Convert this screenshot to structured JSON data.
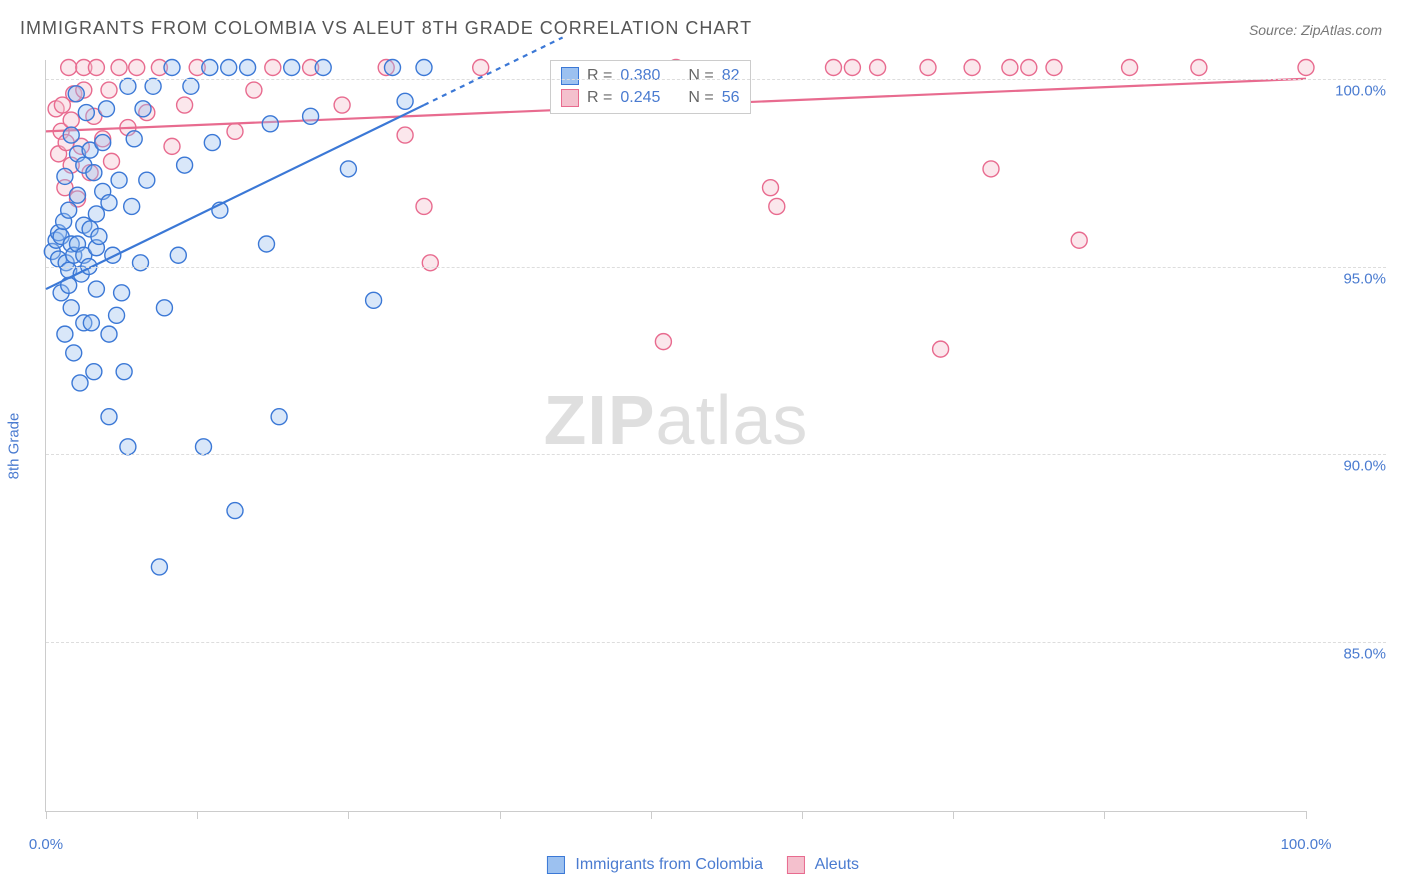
{
  "title": "IMMIGRANTS FROM COLOMBIA VS ALEUT 8TH GRADE CORRELATION CHART",
  "source": "Source: ZipAtlas.com",
  "ylabel": "8th Grade",
  "watermark_a": "ZIP",
  "watermark_b": "atlas",
  "chart": {
    "type": "scatter",
    "background_color": "#ffffff",
    "grid_color": "#dddddd",
    "axis_color": "#cccccc",
    "tick_label_color": "#4a7bd0",
    "xlim": [
      0,
      100
    ],
    "ylim": [
      80.5,
      100.5
    ],
    "yticks": [
      85,
      90,
      95,
      100
    ],
    "ytick_labels": [
      "85.0%",
      "90.0%",
      "95.0%",
      "100.0%"
    ],
    "xtick_positions": [
      0,
      12,
      24,
      36,
      48,
      60,
      72,
      84,
      100
    ],
    "xtick_labels": {
      "0": "0.0%",
      "100": "100.0%"
    },
    "marker_radius": 8,
    "marker_opacity": 0.38,
    "line_width": 2.2
  },
  "series": {
    "colombia": {
      "label": "Immigrants from Colombia",
      "fill": "#9cc1f0",
      "stroke": "#3b78d6",
      "R": "0.380",
      "N": "82",
      "regression": {
        "x1": 0,
        "y1": 94.4,
        "x2": 30,
        "y2": 99.3,
        "dash_x2": 41,
        "dash_y2": 101.1
      },
      "points": [
        [
          0.5,
          95.4
        ],
        [
          0.8,
          95.7
        ],
        [
          1.0,
          95.2
        ],
        [
          1.0,
          95.9
        ],
        [
          1.2,
          94.3
        ],
        [
          1.2,
          95.8
        ],
        [
          1.4,
          96.2
        ],
        [
          1.5,
          93.2
        ],
        [
          1.5,
          97.4
        ],
        [
          1.6,
          95.1
        ],
        [
          1.8,
          94.5
        ],
        [
          1.8,
          94.9
        ],
        [
          1.8,
          96.5
        ],
        [
          2.0,
          93.9
        ],
        [
          2.0,
          95.6
        ],
        [
          2.0,
          98.5
        ],
        [
          2.2,
          92.7
        ],
        [
          2.2,
          95.3
        ],
        [
          2.4,
          99.6
        ],
        [
          2.5,
          95.6
        ],
        [
          2.5,
          96.9
        ],
        [
          2.5,
          98.0
        ],
        [
          2.7,
          91.9
        ],
        [
          2.8,
          94.8
        ],
        [
          3.0,
          93.5
        ],
        [
          3.0,
          95.3
        ],
        [
          3.0,
          96.1
        ],
        [
          3.0,
          97.7
        ],
        [
          3.2,
          99.1
        ],
        [
          3.4,
          95.0
        ],
        [
          3.5,
          96.0
        ],
        [
          3.5,
          98.1
        ],
        [
          3.6,
          93.5
        ],
        [
          3.8,
          92.2
        ],
        [
          3.8,
          97.5
        ],
        [
          4.0,
          94.4
        ],
        [
          4.0,
          95.5
        ],
        [
          4.0,
          96.4
        ],
        [
          4.2,
          95.8
        ],
        [
          4.5,
          97.0
        ],
        [
          4.5,
          98.3
        ],
        [
          4.8,
          99.2
        ],
        [
          5.0,
          91.0
        ],
        [
          5.0,
          93.2
        ],
        [
          5.0,
          96.7
        ],
        [
          5.3,
          95.3
        ],
        [
          5.6,
          93.7
        ],
        [
          5.8,
          97.3
        ],
        [
          6.0,
          94.3
        ],
        [
          6.2,
          92.2
        ],
        [
          6.5,
          90.2
        ],
        [
          6.5,
          99.8
        ],
        [
          6.8,
          96.6
        ],
        [
          7.0,
          98.4
        ],
        [
          7.5,
          95.1
        ],
        [
          7.7,
          99.2
        ],
        [
          8.0,
          97.3
        ],
        [
          8.5,
          99.8
        ],
        [
          9.0,
          87.0
        ],
        [
          9.4,
          93.9
        ],
        [
          10.0,
          100.3
        ],
        [
          10.5,
          95.3
        ],
        [
          11.0,
          97.7
        ],
        [
          11.5,
          99.8
        ],
        [
          12.5,
          90.2
        ],
        [
          13.0,
          100.3
        ],
        [
          13.2,
          98.3
        ],
        [
          13.8,
          96.5
        ],
        [
          14.5,
          100.3
        ],
        [
          15.0,
          88.5
        ],
        [
          16.0,
          100.3
        ],
        [
          17.5,
          95.6
        ],
        [
          17.8,
          98.8
        ],
        [
          18.5,
          91.0
        ],
        [
          19.5,
          100.3
        ],
        [
          21.0,
          99.0
        ],
        [
          22.0,
          100.3
        ],
        [
          24.0,
          97.6
        ],
        [
          26.0,
          94.1
        ],
        [
          27.5,
          100.3
        ],
        [
          28.5,
          99.4
        ],
        [
          30.0,
          100.3
        ]
      ]
    },
    "aleuts": {
      "label": "Aleuts",
      "fill": "#f4c0cd",
      "stroke": "#e86b8f",
      "R": "0.245",
      "N": "56",
      "regression": {
        "x1": 0,
        "y1": 98.6,
        "x2": 100,
        "y2": 100.0
      },
      "points": [
        [
          0.8,
          99.2
        ],
        [
          1.0,
          98.0
        ],
        [
          1.2,
          98.6
        ],
        [
          1.3,
          99.3
        ],
        [
          1.5,
          97.1
        ],
        [
          1.6,
          98.3
        ],
        [
          1.8,
          100.3
        ],
        [
          2.0,
          97.7
        ],
        [
          2.0,
          98.9
        ],
        [
          2.2,
          99.6
        ],
        [
          2.5,
          96.8
        ],
        [
          2.8,
          98.2
        ],
        [
          3.0,
          99.7
        ],
        [
          3.0,
          100.3
        ],
        [
          3.5,
          97.5
        ],
        [
          3.8,
          99.0
        ],
        [
          4.0,
          100.3
        ],
        [
          4.5,
          98.4
        ],
        [
          5.0,
          99.7
        ],
        [
          5.2,
          97.8
        ],
        [
          5.8,
          100.3
        ],
        [
          6.5,
          98.7
        ],
        [
          7.2,
          100.3
        ],
        [
          8.0,
          99.1
        ],
        [
          9.0,
          100.3
        ],
        [
          10.0,
          98.2
        ],
        [
          11.0,
          99.3
        ],
        [
          12.0,
          100.3
        ],
        [
          15.0,
          98.6
        ],
        [
          16.5,
          99.7
        ],
        [
          18.0,
          100.3
        ],
        [
          21.0,
          100.3
        ],
        [
          23.5,
          99.3
        ],
        [
          27.0,
          100.3
        ],
        [
          28.5,
          98.5
        ],
        [
          30.0,
          96.6
        ],
        [
          30.5,
          95.1
        ],
        [
          34.5,
          100.3
        ],
        [
          49.0,
          93.0
        ],
        [
          50.0,
          100.3
        ],
        [
          57.5,
          97.1
        ],
        [
          58.0,
          96.6
        ],
        [
          62.5,
          100.3
        ],
        [
          64.0,
          100.3
        ],
        [
          66.0,
          100.3
        ],
        [
          70.0,
          100.3
        ],
        [
          71.0,
          92.8
        ],
        [
          73.5,
          100.3
        ],
        [
          75.0,
          97.6
        ],
        [
          76.5,
          100.3
        ],
        [
          78.0,
          100.3
        ],
        [
          80.0,
          100.3
        ],
        [
          82.0,
          95.7
        ],
        [
          86.0,
          100.3
        ],
        [
          91.5,
          100.3
        ],
        [
          100.0,
          100.3
        ]
      ]
    }
  },
  "corr_box": {
    "R_label": "R =",
    "N_label": "N ="
  }
}
